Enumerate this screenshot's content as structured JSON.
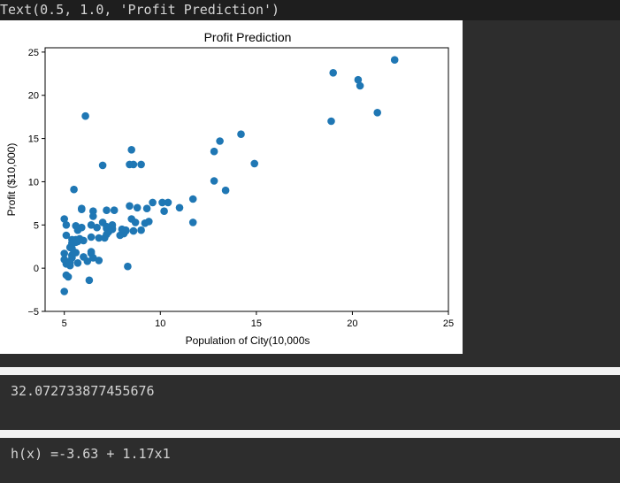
{
  "cell1": {
    "text_repr": "Text(0.5, 1.0, 'Profit Prediction')"
  },
  "chart_data": {
    "type": "scatter",
    "title": "Profit Prediction",
    "xlabel": "Population of City(10,000s",
    "ylabel": "Profit ($10,000)",
    "xlim": [
      4,
      25
    ],
    "ylim": [
      -5,
      25.5
    ],
    "xticks": [
      5,
      10,
      15,
      20,
      25
    ],
    "yticks": [
      -5,
      0,
      5,
      10,
      15,
      20,
      25
    ],
    "xtick_labels": [
      "5",
      "10",
      "15",
      "20",
      "25"
    ],
    "ytick_labels": [
      "−5",
      "0",
      "5",
      "10",
      "15",
      "20",
      "25"
    ],
    "grid": false,
    "marker_color": "#1f77b4",
    "points": [
      [
        6.1,
        17.6
      ],
      [
        5.5,
        9.1
      ],
      [
        8.5,
        13.7
      ],
      [
        7.0,
        11.9
      ],
      [
        5.9,
        6.8
      ],
      [
        8.4,
        12.0
      ],
      [
        7.5,
        4.6
      ],
      [
        8.6,
        12.0
      ],
      [
        6.5,
        6.6
      ],
      [
        5.1,
        3.8
      ],
      [
        5.7,
        3.3
      ],
      [
        14.2,
        15.5
      ],
      [
        5.7,
        3.1
      ],
      [
        8.4,
        7.2
      ],
      [
        6.5,
        6.0
      ],
      [
        5.1,
        5.0
      ],
      [
        5.7,
        4.4
      ],
      [
        6.0,
        3.2
      ],
      [
        5.0,
        5.7
      ],
      [
        6.4,
        3.6
      ],
      [
        5.0,
        1.7
      ],
      [
        5.3,
        2.4
      ],
      [
        5.4,
        1.5
      ],
      [
        5.9,
        4.7
      ],
      [
        6.4,
        5.0
      ],
      [
        12.8,
        13.5
      ],
      [
        5.3,
        0.3
      ],
      [
        5.4,
        1.5
      ],
      [
        9.2,
        5.2
      ],
      [
        10.4,
        7.6
      ],
      [
        5.2,
        0.7
      ],
      [
        5.4,
        2.9
      ],
      [
        6.4,
        1.7
      ],
      [
        5.6,
        3.0
      ],
      [
        5.4,
        3.3
      ],
      [
        5.1,
        0.5
      ],
      [
        6.8,
        0.9
      ],
      [
        5.4,
        2.9
      ],
      [
        5.6,
        3.3
      ],
      [
        5.4,
        1.2
      ],
      [
        5.0,
        -2.7
      ],
      [
        5.4,
        2.3
      ],
      [
        6.0,
        1.3
      ],
      [
        5.8,
        3.4
      ],
      [
        8.2,
        4.3
      ],
      [
        5.6,
        1.8
      ],
      [
        6.5,
        1.2
      ],
      [
        5.2,
        -1.0
      ],
      [
        5.9,
        6.9
      ],
      [
        7.0,
        5.3
      ],
      [
        7.2,
        4.6
      ],
      [
        8.3,
        0.2
      ],
      [
        8.5,
        5.7
      ],
      [
        5.6,
        4.9
      ],
      [
        8.6,
        4.3
      ],
      [
        10.2,
        6.6
      ],
      [
        11.7,
        5.3
      ],
      [
        7.2,
        3.9
      ],
      [
        7.6,
        6.7
      ],
      [
        7.3,
        4.2
      ],
      [
        8.2,
        4.4
      ],
      [
        9.4,
        5.4
      ],
      [
        7.2,
        6.7
      ],
      [
        8.7,
        5.3
      ],
      [
        9.0,
        4.4
      ],
      [
        7.1,
        3.5
      ],
      [
        7.2,
        4.8
      ],
      [
        8.1,
        4.0
      ],
      [
        7.5,
        4.5
      ],
      [
        6.8,
        3.5
      ],
      [
        9.3,
        6.9
      ],
      [
        13.4,
        9.0
      ],
      [
        12.8,
        10.1
      ],
      [
        11.7,
        8.0
      ],
      [
        8.8,
        7.0
      ],
      [
        9.6,
        7.6
      ],
      [
        10.1,
        7.6
      ],
      [
        11.0,
        7.0
      ],
      [
        13.1,
        14.7
      ],
      [
        19.0,
        22.6
      ],
      [
        20.3,
        21.8
      ],
      [
        22.2,
        24.1
      ],
      [
        20.4,
        21.1
      ],
      [
        18.9,
        17.0
      ],
      [
        21.3,
        18.0
      ],
      [
        14.9,
        12.1
      ],
      [
        9.0,
        12.0
      ],
      [
        5.5,
        1.8
      ],
      [
        6.2,
        0.8
      ],
      [
        6.3,
        -1.4
      ],
      [
        6.7,
        4.7
      ],
      [
        5.1,
        -0.8
      ],
      [
        5.7,
        0.6
      ],
      [
        6.4,
        1.9
      ],
      [
        5.0,
        1.0
      ],
      [
        8.0,
        4.5
      ],
      [
        5.3,
        0.7
      ],
      [
        7.9,
        3.8
      ],
      [
        7.5,
        5.0
      ]
    ]
  },
  "cell2": {
    "output": "32.072733877455676"
  },
  "cell3": {
    "output": "h(x) =-3.63 + 1.17x1"
  }
}
